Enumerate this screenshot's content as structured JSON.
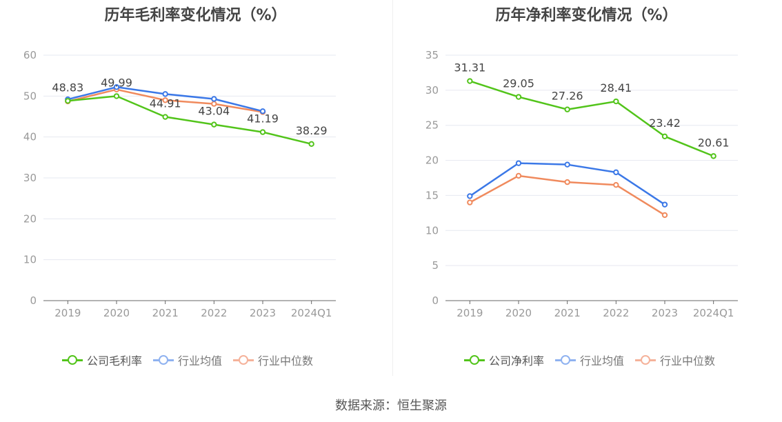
{
  "colors": {
    "company": "#52c41a",
    "industry_avg": "#3b78e7",
    "industry_median": "#f08a5d",
    "legend_avg": "#8fb2f0",
    "legend_median": "#f5b29a",
    "axis": "#666666",
    "grid": "#e6e8f0",
    "tick_text": "#999999",
    "label_text": "#444444"
  },
  "source": "数据来源：恒生聚源",
  "chart_data": [
    {
      "type": "line",
      "title": "历年毛利率变化情况（%）",
      "categories": [
        "2019",
        "2020",
        "2021",
        "2022",
        "2023",
        "2024Q1"
      ],
      "ylim": [
        0,
        60
      ],
      "yticks": [
        "0",
        "10",
        "20",
        "30",
        "40",
        "50",
        "60"
      ],
      "grid": true,
      "legend_position": "bottom",
      "series": [
        {
          "name": "公司毛利率",
          "key": "company",
          "values": [
            48.83,
            49.99,
            44.91,
            43.04,
            41.19,
            38.29
          ],
          "labels": [
            "48.83",
            "49.99",
            "44.91",
            "43.04",
            "41.19",
            "38.29"
          ]
        },
        {
          "name": "行业均值",
          "key": "industry_avg",
          "values": [
            49.2,
            52.2,
            50.5,
            49.3,
            46.3,
            null
          ]
        },
        {
          "name": "行业中位数",
          "key": "industry_median",
          "values": [
            48.7,
            51.6,
            49.0,
            48.1,
            46.1,
            null
          ]
        }
      ]
    },
    {
      "type": "line",
      "title": "历年净利率变化情况（%）",
      "categories": [
        "2019",
        "2020",
        "2021",
        "2022",
        "2023",
        "2024Q1"
      ],
      "ylim": [
        0,
        35
      ],
      "yticks": [
        "0",
        "5",
        "10",
        "15",
        "20",
        "25",
        "30",
        "35"
      ],
      "grid": true,
      "legend_position": "bottom",
      "series": [
        {
          "name": "公司净利率",
          "key": "company",
          "values": [
            31.31,
            29.05,
            27.26,
            28.41,
            23.42,
            20.61
          ],
          "labels": [
            "31.31",
            "29.05",
            "27.26",
            "28.41",
            "23.42",
            "20.61"
          ]
        },
        {
          "name": "行业均值",
          "key": "industry_avg",
          "values": [
            14.9,
            19.6,
            19.4,
            18.3,
            13.7,
            null
          ]
        },
        {
          "name": "行业中位数",
          "key": "industry_median",
          "values": [
            14.0,
            17.8,
            16.9,
            16.5,
            12.2,
            null
          ]
        }
      ]
    }
  ]
}
